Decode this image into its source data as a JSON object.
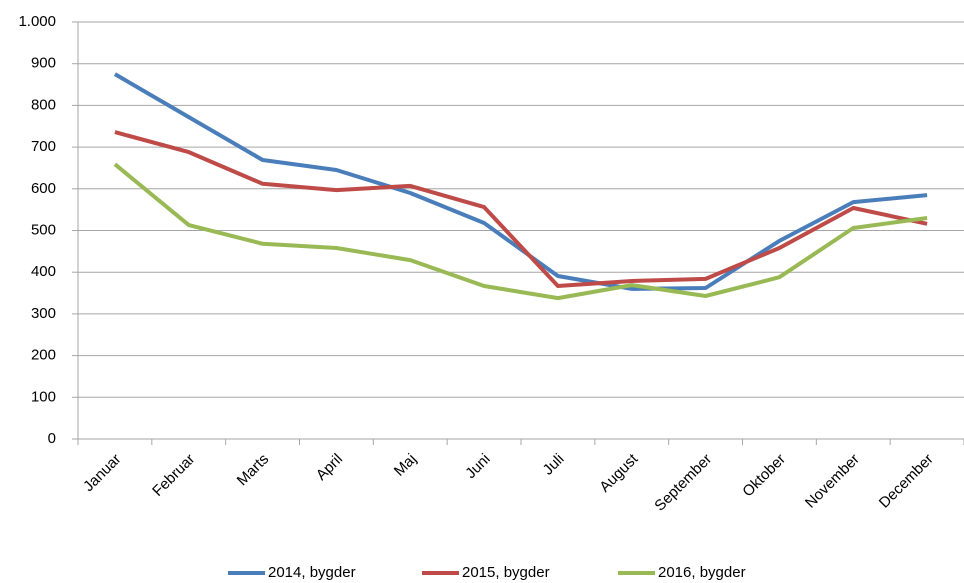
{
  "chart_data": {
    "type": "line",
    "categories": [
      "Januar",
      "Februar",
      "Marts",
      "April",
      "Maj",
      "Juni",
      "Juli",
      "August",
      "September",
      "Oktober",
      "November",
      "December"
    ],
    "series": [
      {
        "name": "2014, bygder",
        "color": "#4a7ebb",
        "values": [
          875,
          772,
          669,
          645,
          590,
          518,
          391,
          360,
          362,
          475,
          568,
          585
        ]
      },
      {
        "name": "2015, bygder",
        "color": "#be4b48",
        "values": [
          736,
          688,
          612,
          597,
          607,
          556,
          367,
          379,
          384,
          458,
          554,
          516
        ]
      },
      {
        "name": "2016, bygder",
        "color": "#98b954",
        "values": [
          659,
          513,
          468,
          458,
          429,
          367,
          338,
          369,
          343,
          388,
          506,
          530
        ]
      }
    ],
    "ylim": [
      0,
      1000
    ],
    "yticks": [
      0,
      100,
      200,
      300,
      400,
      500,
      600,
      700,
      800,
      900,
      {
        "value": 1000,
        "label": "1.000"
      }
    ],
    "grid": true,
    "legend": "bottom"
  }
}
